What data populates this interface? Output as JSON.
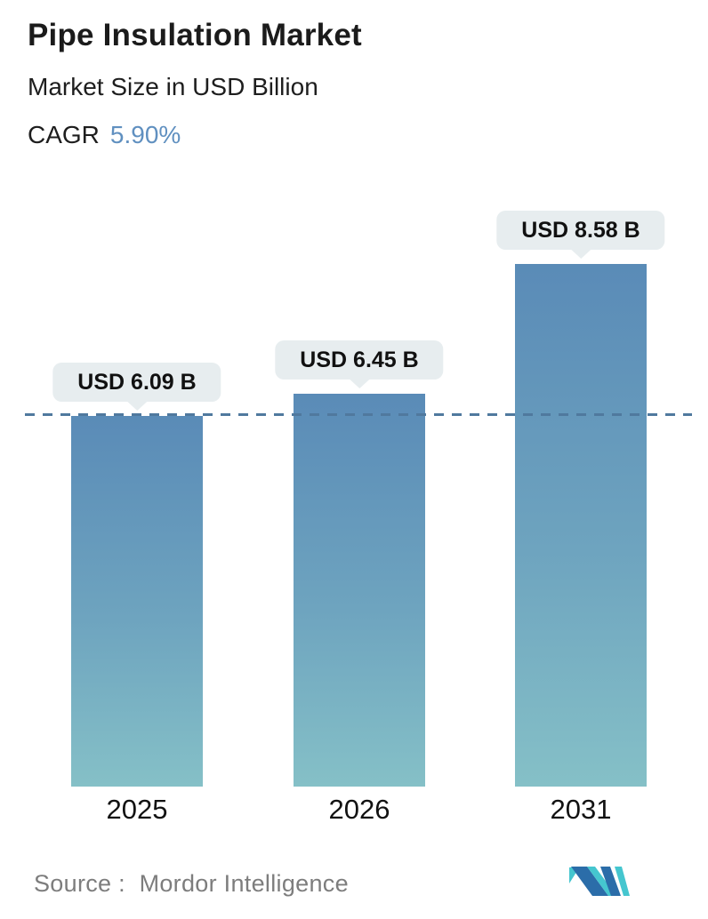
{
  "header": {
    "title": "Pipe Insulation Market",
    "subtitle": "Market Size in USD Billion",
    "cagr_label": "CAGR",
    "cagr_value": "5.90%"
  },
  "chart_data": {
    "type": "bar",
    "categories": [
      "2025",
      "2026",
      "2031"
    ],
    "values": [
      6.09,
      6.45,
      8.58
    ],
    "value_labels": [
      "USD 6.09 B",
      "USD 6.45 B",
      "USD 8.58 B"
    ],
    "title": "Pipe Insulation Market",
    "subtitle": "Market Size in USD Billion",
    "unit": "USD Billion",
    "cagr": "5.90%",
    "ylim": [
      0,
      9.3
    ],
    "grid": false,
    "legend": false,
    "reference_line": {
      "style": "dashed",
      "value": 6.09,
      "note": "dashed horizontal line level with 2025 bar top",
      "color": "#50799e"
    },
    "colors": {
      "bar_gradient_top": "#5a8bb7",
      "bar_gradient_bottom": "#85c0c7",
      "label_bubble_bg": "#e7edef",
      "label_text": "#111111",
      "cagr_accent": "#6090c0"
    }
  },
  "footer": {
    "source_label": "Source :",
    "source_value": "Mordor Intelligence",
    "logo": "mordor-intelligence-logo",
    "logo_colors": {
      "blue": "#2b6da9",
      "teal": "#45c6cf"
    }
  }
}
